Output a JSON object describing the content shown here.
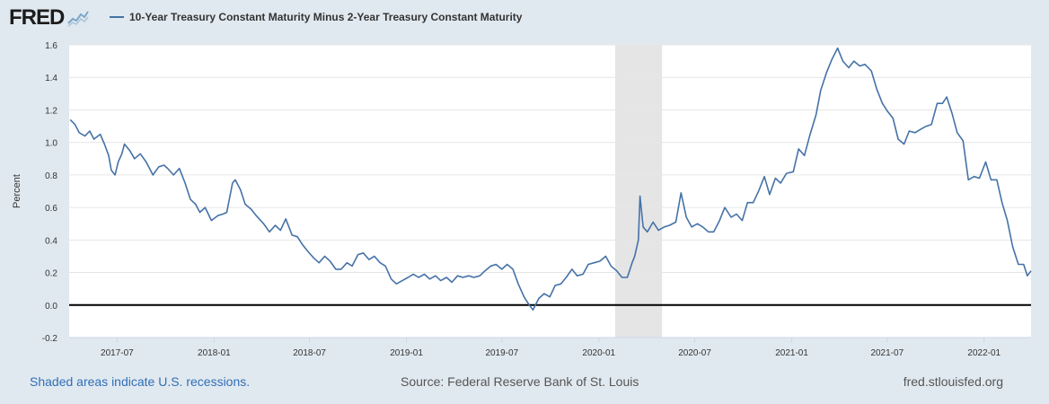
{
  "header": {
    "logo_text": "FRED",
    "legend_label": "10-Year Treasury Constant Maturity Minus 2-Year Treasury Constant Maturity",
    "colors": {
      "series": "#4572a7",
      "logo_graph": "#7aa6c9"
    }
  },
  "footer": {
    "recession_note": "Shaded areas indicate U.S. recessions.",
    "source": "Source: Federal Reserve Bank of St. Louis",
    "site": "fred.stlouisfed.org"
  },
  "chart_data": {
    "type": "line",
    "ylabel": "Percent",
    "ylim": [
      -0.2,
      1.6
    ],
    "yticks": [
      "-0.2",
      "0.0",
      "0.2",
      "0.4",
      "0.6",
      "0.8",
      "1.0",
      "1.2",
      "1.4",
      "1.6"
    ],
    "xlim": [
      "2017-04-01",
      "2022-03-31"
    ],
    "xticks": [
      "2017-07",
      "2018-01",
      "2018-07",
      "2019-01",
      "2019-07",
      "2020-01",
      "2020-07",
      "2021-01",
      "2021-07",
      "2022-01"
    ],
    "grid": true,
    "zero_line": true,
    "recession": {
      "start": "2020-02-01",
      "end": "2020-04-30",
      "color": "#e5e5e5"
    },
    "series": [
      {
        "color": "#4572a7",
        "points": [
          [
            "2017-04-03",
            1.14
          ],
          [
            "2017-04-12",
            1.11
          ],
          [
            "2017-04-20",
            1.06
          ],
          [
            "2017-05-01",
            1.04
          ],
          [
            "2017-05-10",
            1.07
          ],
          [
            "2017-05-18",
            1.02
          ],
          [
            "2017-05-30",
            1.05
          ],
          [
            "2017-06-07",
            0.99
          ],
          [
            "2017-06-15",
            0.92
          ],
          [
            "2017-06-20",
            0.83
          ],
          [
            "2017-06-27",
            0.8
          ],
          [
            "2017-07-03",
            0.88
          ],
          [
            "2017-07-10",
            0.93
          ],
          [
            "2017-07-15",
            0.99
          ],
          [
            "2017-07-25",
            0.95
          ],
          [
            "2017-08-03",
            0.9
          ],
          [
            "2017-08-14",
            0.93
          ],
          [
            "2017-08-25",
            0.88
          ],
          [
            "2017-09-07",
            0.8
          ],
          [
            "2017-09-18",
            0.85
          ],
          [
            "2017-09-28",
            0.86
          ],
          [
            "2017-10-05",
            0.84
          ],
          [
            "2017-10-16",
            0.8
          ],
          [
            "2017-10-27",
            0.84
          ],
          [
            "2017-11-07",
            0.75
          ],
          [
            "2017-11-17",
            0.65
          ],
          [
            "2017-11-27",
            0.62
          ],
          [
            "2017-12-05",
            0.57
          ],
          [
            "2017-12-15",
            0.6
          ],
          [
            "2017-12-27",
            0.52
          ],
          [
            "2018-01-08",
            0.55
          ],
          [
            "2018-01-18",
            0.56
          ],
          [
            "2018-01-25",
            0.57
          ],
          [
            "2018-02-05",
            0.75
          ],
          [
            "2018-02-10",
            0.77
          ],
          [
            "2018-02-20",
            0.71
          ],
          [
            "2018-03-01",
            0.62
          ],
          [
            "2018-03-12",
            0.59
          ],
          [
            "2018-03-22",
            0.55
          ],
          [
            "2018-04-05",
            0.5
          ],
          [
            "2018-04-16",
            0.45
          ],
          [
            "2018-04-27",
            0.49
          ],
          [
            "2018-05-07",
            0.46
          ],
          [
            "2018-05-17",
            0.53
          ],
          [
            "2018-05-29",
            0.43
          ],
          [
            "2018-06-08",
            0.42
          ],
          [
            "2018-06-18",
            0.37
          ],
          [
            "2018-06-28",
            0.33
          ],
          [
            "2018-07-09",
            0.29
          ],
          [
            "2018-07-19",
            0.26
          ],
          [
            "2018-07-30",
            0.3
          ],
          [
            "2018-08-09",
            0.27
          ],
          [
            "2018-08-20",
            0.22
          ],
          [
            "2018-08-30",
            0.22
          ],
          [
            "2018-09-10",
            0.26
          ],
          [
            "2018-09-20",
            0.24
          ],
          [
            "2018-10-01",
            0.31
          ],
          [
            "2018-10-11",
            0.32
          ],
          [
            "2018-10-22",
            0.28
          ],
          [
            "2018-11-01",
            0.3
          ],
          [
            "2018-11-12",
            0.26
          ],
          [
            "2018-11-22",
            0.24
          ],
          [
            "2018-12-03",
            0.16
          ],
          [
            "2018-12-13",
            0.13
          ],
          [
            "2018-12-24",
            0.15
          ],
          [
            "2019-01-04",
            0.17
          ],
          [
            "2019-01-14",
            0.19
          ],
          [
            "2019-01-24",
            0.17
          ],
          [
            "2019-02-04",
            0.19
          ],
          [
            "2019-02-14",
            0.16
          ],
          [
            "2019-02-25",
            0.18
          ],
          [
            "2019-03-07",
            0.15
          ],
          [
            "2019-03-18",
            0.17
          ],
          [
            "2019-03-28",
            0.14
          ],
          [
            "2019-04-08",
            0.18
          ],
          [
            "2019-04-18",
            0.17
          ],
          [
            "2019-04-29",
            0.18
          ],
          [
            "2019-05-09",
            0.17
          ],
          [
            "2019-05-20",
            0.18
          ],
          [
            "2019-05-30",
            0.21
          ],
          [
            "2019-06-10",
            0.24
          ],
          [
            "2019-06-20",
            0.25
          ],
          [
            "2019-07-01",
            0.22
          ],
          [
            "2019-07-11",
            0.25
          ],
          [
            "2019-07-22",
            0.22
          ],
          [
            "2019-08-01",
            0.13
          ],
          [
            "2019-08-12",
            0.05
          ],
          [
            "2019-08-22",
            0.0
          ],
          [
            "2019-08-29",
            -0.03
          ],
          [
            "2019-09-09",
            0.04
          ],
          [
            "2019-09-19",
            0.07
          ],
          [
            "2019-09-30",
            0.05
          ],
          [
            "2019-10-10",
            0.12
          ],
          [
            "2019-10-21",
            0.13
          ],
          [
            "2019-10-31",
            0.17
          ],
          [
            "2019-11-11",
            0.22
          ],
          [
            "2019-11-21",
            0.18
          ],
          [
            "2019-12-02",
            0.19
          ],
          [
            "2019-12-12",
            0.25
          ],
          [
            "2019-12-23",
            0.26
          ],
          [
            "2020-01-03",
            0.27
          ],
          [
            "2020-01-14",
            0.3
          ],
          [
            "2020-01-24",
            0.24
          ],
          [
            "2020-02-04",
            0.21
          ],
          [
            "2020-02-14",
            0.17
          ],
          [
            "2020-02-24",
            0.17
          ],
          [
            "2020-03-04",
            0.26
          ],
          [
            "2020-03-09",
            0.3
          ],
          [
            "2020-03-16",
            0.4
          ],
          [
            "2020-03-19",
            0.67
          ],
          [
            "2020-03-25",
            0.48
          ],
          [
            "2020-04-02",
            0.45
          ],
          [
            "2020-04-13",
            0.51
          ],
          [
            "2020-04-23",
            0.46
          ],
          [
            "2020-05-04",
            0.48
          ],
          [
            "2020-05-14",
            0.49
          ],
          [
            "2020-05-26",
            0.51
          ],
          [
            "2020-06-05",
            0.69
          ],
          [
            "2020-06-15",
            0.54
          ],
          [
            "2020-06-25",
            0.48
          ],
          [
            "2020-07-06",
            0.5
          ],
          [
            "2020-07-16",
            0.48
          ],
          [
            "2020-07-27",
            0.45
          ],
          [
            "2020-08-06",
            0.45
          ],
          [
            "2020-08-17",
            0.52
          ],
          [
            "2020-08-27",
            0.6
          ],
          [
            "2020-09-08",
            0.54
          ],
          [
            "2020-09-18",
            0.56
          ],
          [
            "2020-09-29",
            0.52
          ],
          [
            "2020-10-09",
            0.63
          ],
          [
            "2020-10-20",
            0.63
          ],
          [
            "2020-10-30",
            0.7
          ],
          [
            "2020-11-10",
            0.79
          ],
          [
            "2020-11-20",
            0.68
          ],
          [
            "2020-12-01",
            0.78
          ],
          [
            "2020-12-11",
            0.75
          ],
          [
            "2020-12-22",
            0.81
          ],
          [
            "2021-01-04",
            0.82
          ],
          [
            "2021-01-14",
            0.96
          ],
          [
            "2021-01-25",
            0.92
          ],
          [
            "2021-02-04",
            1.04
          ],
          [
            "2021-02-16",
            1.17
          ],
          [
            "2021-02-25",
            1.32
          ],
          [
            "2021-03-08",
            1.43
          ],
          [
            "2021-03-18",
            1.51
          ],
          [
            "2021-03-29",
            1.58
          ],
          [
            "2021-04-08",
            1.5
          ],
          [
            "2021-04-19",
            1.46
          ],
          [
            "2021-04-29",
            1.5
          ],
          [
            "2021-05-10",
            1.47
          ],
          [
            "2021-05-20",
            1.48
          ],
          [
            "2021-06-01",
            1.44
          ],
          [
            "2021-06-11",
            1.33
          ],
          [
            "2021-06-22",
            1.24
          ],
          [
            "2021-07-02",
            1.19
          ],
          [
            "2021-07-12",
            1.15
          ],
          [
            "2021-07-22",
            1.02
          ],
          [
            "2021-08-02",
            0.99
          ],
          [
            "2021-08-12",
            1.07
          ],
          [
            "2021-08-23",
            1.06
          ],
          [
            "2021-09-02",
            1.08
          ],
          [
            "2021-09-13",
            1.1
          ],
          [
            "2021-09-23",
            1.11
          ],
          [
            "2021-10-04",
            1.24
          ],
          [
            "2021-10-14",
            1.24
          ],
          [
            "2021-10-22",
            1.28
          ],
          [
            "2021-11-01",
            1.18
          ],
          [
            "2021-11-11",
            1.06
          ],
          [
            "2021-11-22",
            1.01
          ],
          [
            "2021-12-02",
            0.77
          ],
          [
            "2021-12-13",
            0.79
          ],
          [
            "2021-12-23",
            0.78
          ],
          [
            "2022-01-04",
            0.88
          ],
          [
            "2022-01-14",
            0.77
          ],
          [
            "2022-01-25",
            0.77
          ],
          [
            "2022-02-04",
            0.63
          ],
          [
            "2022-02-14",
            0.52
          ],
          [
            "2022-02-24",
            0.36
          ],
          [
            "2022-03-07",
            0.25
          ],
          [
            "2022-03-17",
            0.25
          ],
          [
            "2022-03-24",
            0.18
          ],
          [
            "2022-03-31",
            0.21
          ]
        ]
      }
    ]
  }
}
